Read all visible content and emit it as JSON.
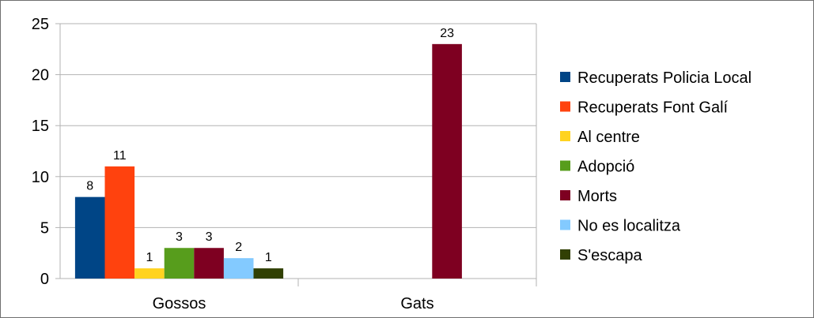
{
  "chart_data": {
    "type": "bar",
    "title": "",
    "xlabel": "",
    "ylabel": "",
    "categories": [
      "Gossos",
      "Gats"
    ],
    "ylim": [
      0,
      25
    ],
    "yticks": [
      "0",
      "5",
      "10",
      "15",
      "20",
      "25"
    ],
    "grid": true,
    "legend_position": "right",
    "series": [
      {
        "name": "Recuperats Policia Local",
        "color": "#004586",
        "values": [
          8,
          null
        ]
      },
      {
        "name": "Recuperats Font Galí",
        "color": "#ff420e",
        "values": [
          11,
          null
        ]
      },
      {
        "name": "Al centre",
        "color": "#ffd320",
        "values": [
          1,
          null
        ]
      },
      {
        "name": "Adopció",
        "color": "#579d1c",
        "values": [
          3,
          null
        ]
      },
      {
        "name": "Morts",
        "color": "#7e0021",
        "values": [
          3,
          23
        ]
      },
      {
        "name": "No es localitza",
        "color": "#83caff",
        "values": [
          2,
          null
        ]
      },
      {
        "name": "S'escapa",
        "color": "#314004",
        "values": [
          1,
          null
        ]
      }
    ]
  }
}
